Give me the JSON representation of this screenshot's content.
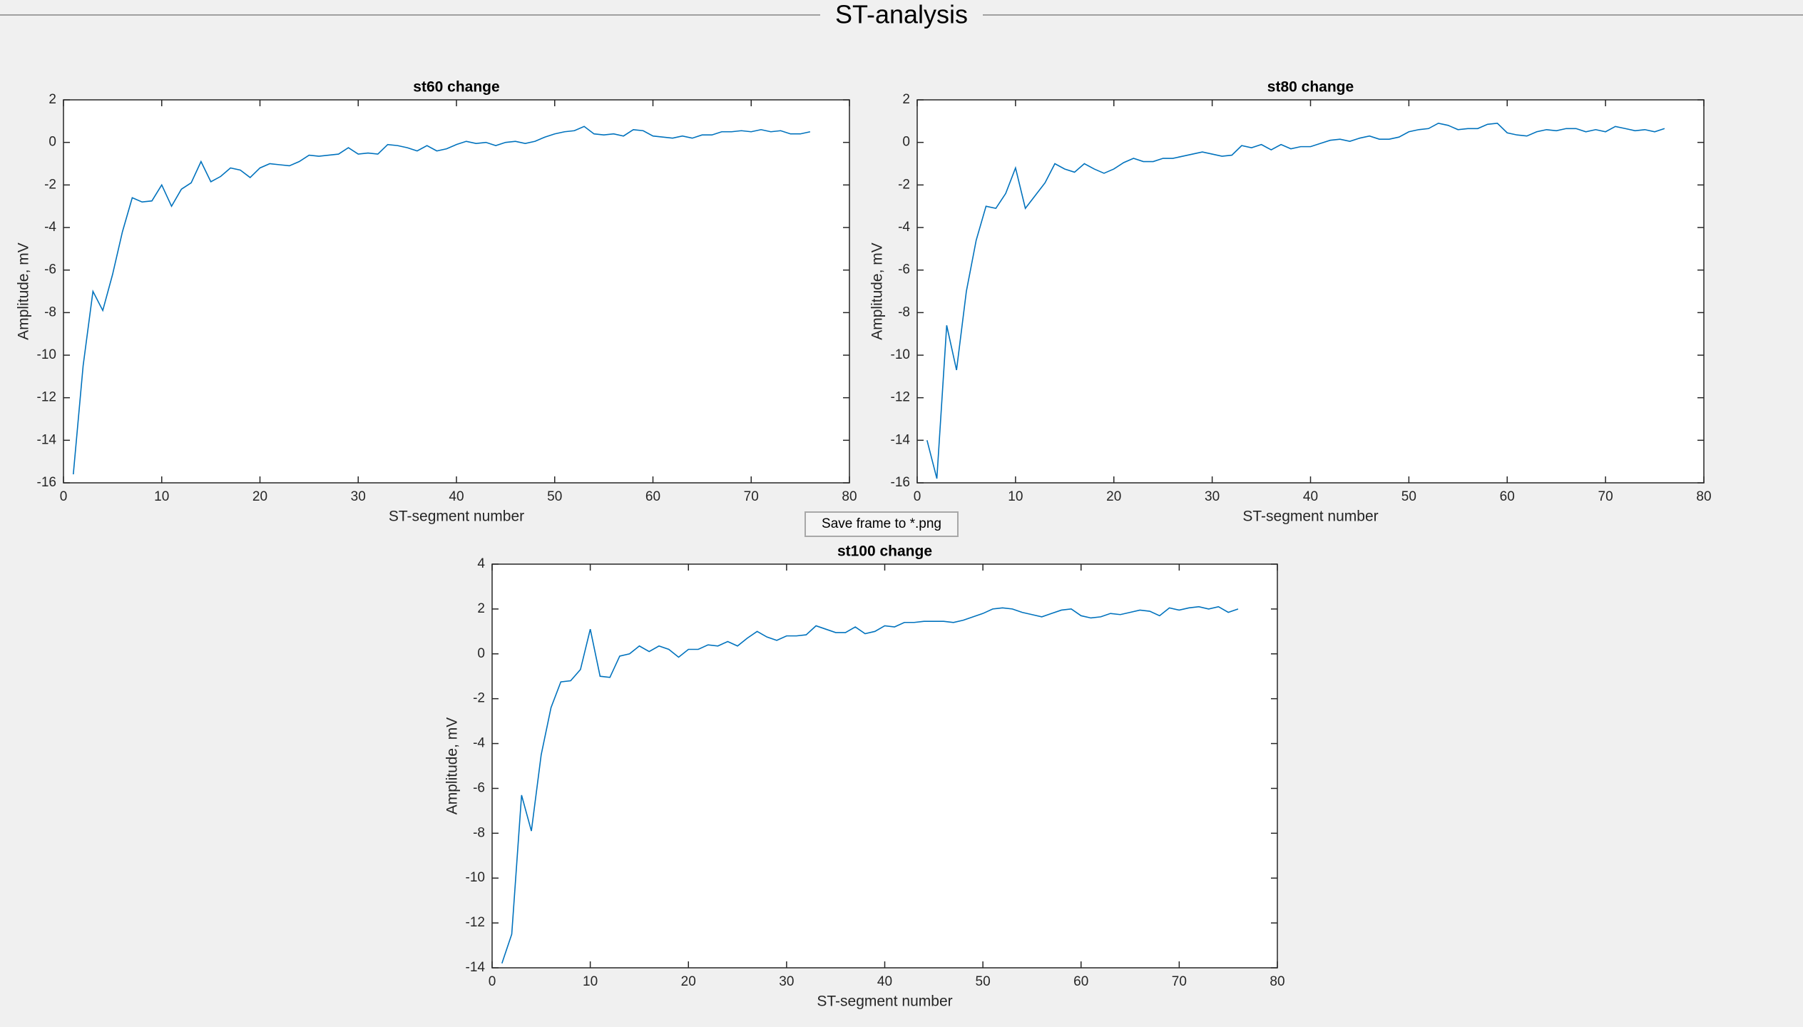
{
  "window_title": "ST-analysis",
  "button_label": "Save frame to *.png",
  "chart_data": [
    {
      "type": "line",
      "title": "st60 change",
      "xlabel": "ST-segment number",
      "ylabel": "Amplitude, mV",
      "color": "#0072bd",
      "xlim": [
        0,
        80
      ],
      "xticks": [
        0,
        10,
        20,
        30,
        40,
        50,
        60,
        70,
        80
      ],
      "ylim": [
        -16,
        2
      ],
      "yticks": [
        -16,
        -14,
        -12,
        -10,
        -8,
        -6,
        -4,
        -2,
        0,
        2
      ],
      "x": [
        1,
        2,
        3,
        4,
        5,
        6,
        7,
        8,
        9,
        10,
        11,
        12,
        13,
        14,
        15,
        16,
        17,
        18,
        19,
        20,
        21,
        22,
        23,
        24,
        25,
        26,
        27,
        28,
        29,
        30,
        31,
        32,
        33,
        34,
        35,
        36,
        37,
        38,
        39,
        40,
        41,
        42,
        43,
        44,
        45,
        46,
        47,
        48,
        49,
        50,
        51,
        52,
        53,
        54,
        55,
        56,
        57,
        58,
        59,
        60,
        61,
        62,
        63,
        64,
        65,
        66,
        67,
        68,
        69,
        70,
        71,
        72,
        73,
        74,
        75,
        76
      ],
      "values": [
        -15.6,
        -10.5,
        -7.0,
        -7.9,
        -6.2,
        -4.2,
        -2.6,
        -2.8,
        -2.75,
        -2.0,
        -3.0,
        -2.2,
        -1.9,
        -0.9,
        -1.85,
        -1.6,
        -1.2,
        -1.3,
        -1.65,
        -1.2,
        -1.0,
        -1.05,
        -1.1,
        -0.9,
        -0.6,
        -0.65,
        -0.6,
        -0.55,
        -0.25,
        -0.55,
        -0.5,
        -0.55,
        -0.1,
        -0.15,
        -0.25,
        -0.4,
        -0.15,
        -0.4,
        -0.3,
        -0.1,
        0.05,
        -0.05,
        0.0,
        -0.15,
        0.0,
        0.05,
        -0.05,
        0.05,
        0.25,
        0.4,
        0.5,
        0.55,
        0.75,
        0.4,
        0.35,
        0.4,
        0.3,
        0.6,
        0.55,
        0.3,
        0.25,
        0.2,
        0.3,
        0.2,
        0.35,
        0.35,
        0.5,
        0.5,
        0.55,
        0.5,
        0.6,
        0.5,
        0.55,
        0.4,
        0.4,
        0.5
      ]
    },
    {
      "type": "line",
      "title": "st80 change",
      "xlabel": "ST-segment number",
      "ylabel": "Amplitude, mV",
      "color": "#0072bd",
      "xlim": [
        0,
        80
      ],
      "xticks": [
        0,
        10,
        20,
        30,
        40,
        50,
        60,
        70,
        80
      ],
      "ylim": [
        -16,
        2
      ],
      "yticks": [
        -16,
        -14,
        -12,
        -10,
        -8,
        -6,
        -4,
        -2,
        0,
        2
      ],
      "x": [
        1,
        2,
        3,
        4,
        5,
        6,
        7,
        8,
        9,
        10,
        11,
        12,
        13,
        14,
        15,
        16,
        17,
        18,
        19,
        20,
        21,
        22,
        23,
        24,
        25,
        26,
        27,
        28,
        29,
        30,
        31,
        32,
        33,
        34,
        35,
        36,
        37,
        38,
        39,
        40,
        41,
        42,
        43,
        44,
        45,
        46,
        47,
        48,
        49,
        50,
        51,
        52,
        53,
        54,
        55,
        56,
        57,
        58,
        59,
        60,
        61,
        62,
        63,
        64,
        65,
        66,
        67,
        68,
        69,
        70,
        71,
        72,
        73,
        74,
        75,
        76
      ],
      "values": [
        -14.0,
        -15.8,
        -8.6,
        -10.7,
        -7.0,
        -4.6,
        -3.0,
        -3.1,
        -2.4,
        -1.2,
        -3.1,
        -2.5,
        -1.9,
        -1.0,
        -1.25,
        -1.4,
        -1.0,
        -1.25,
        -1.45,
        -1.25,
        -0.95,
        -0.75,
        -0.9,
        -0.9,
        -0.75,
        -0.75,
        -0.65,
        -0.55,
        -0.45,
        -0.55,
        -0.65,
        -0.6,
        -0.15,
        -0.25,
        -0.1,
        -0.35,
        -0.1,
        -0.3,
        -0.2,
        -0.2,
        -0.05,
        0.1,
        0.15,
        0.05,
        0.2,
        0.3,
        0.15,
        0.15,
        0.25,
        0.5,
        0.6,
        0.65,
        0.9,
        0.8,
        0.6,
        0.65,
        0.65,
        0.85,
        0.9,
        0.45,
        0.35,
        0.3,
        0.5,
        0.6,
        0.55,
        0.65,
        0.65,
        0.5,
        0.6,
        0.5,
        0.75,
        0.65,
        0.55,
        0.6,
        0.5,
        0.65
      ]
    },
    {
      "type": "line",
      "title": "st100 change",
      "xlabel": "ST-segment number",
      "ylabel": "Amplitude, mV",
      "color": "#0072bd",
      "xlim": [
        0,
        80
      ],
      "xticks": [
        0,
        10,
        20,
        30,
        40,
        50,
        60,
        70,
        80
      ],
      "ylim": [
        -14,
        4
      ],
      "yticks": [
        -14,
        -12,
        -10,
        -8,
        -6,
        -4,
        -2,
        0,
        2,
        4
      ],
      "x": [
        1,
        2,
        3,
        4,
        5,
        6,
        7,
        8,
        9,
        10,
        11,
        12,
        13,
        14,
        15,
        16,
        17,
        18,
        19,
        20,
        21,
        22,
        23,
        24,
        25,
        26,
        27,
        28,
        29,
        30,
        31,
        32,
        33,
        34,
        35,
        36,
        37,
        38,
        39,
        40,
        41,
        42,
        43,
        44,
        45,
        46,
        47,
        48,
        49,
        50,
        51,
        52,
        53,
        54,
        55,
        56,
        57,
        58,
        59,
        60,
        61,
        62,
        63,
        64,
        65,
        66,
        67,
        68,
        69,
        70,
        71,
        72,
        73,
        74,
        75,
        76
      ],
      "values": [
        -13.8,
        -12.5,
        -6.3,
        -7.9,
        -4.5,
        -2.4,
        -1.25,
        -1.2,
        -0.7,
        1.1,
        -1.0,
        -1.05,
        -0.1,
        0.0,
        0.35,
        0.1,
        0.35,
        0.2,
        -0.15,
        0.2,
        0.2,
        0.4,
        0.35,
        0.55,
        0.35,
        0.7,
        1.0,
        0.75,
        0.6,
        0.8,
        0.8,
        0.85,
        1.25,
        1.1,
        0.95,
        0.95,
        1.2,
        0.9,
        1.0,
        1.25,
        1.2,
        1.4,
        1.4,
        1.45,
        1.45,
        1.45,
        1.4,
        1.5,
        1.65,
        1.8,
        2.0,
        2.05,
        2.0,
        1.85,
        1.75,
        1.65,
        1.8,
        1.95,
        2.0,
        1.7,
        1.6,
        1.65,
        1.8,
        1.75,
        1.85,
        1.95,
        1.9,
        1.7,
        2.05,
        1.95,
        2.05,
        2.1,
        2.0,
        2.1,
        1.85,
        2.0
      ]
    }
  ]
}
